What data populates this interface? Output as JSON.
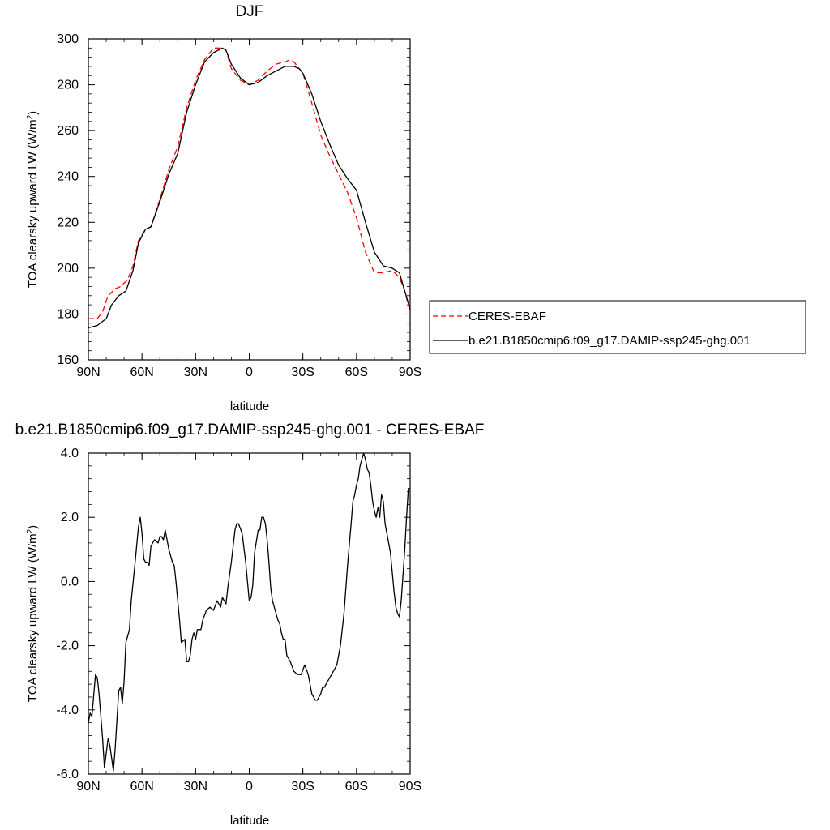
{
  "colors": {
    "model": "#000000",
    "obs": "#ff0000"
  },
  "chart_data": [
    {
      "type": "line",
      "title": "DJF",
      "xlabel": "latitude",
      "ylabel_main": "TOA clearsky upward LW (W/m",
      "ylabel_sup": "2",
      "ylabel_close": ")",
      "xlim": [
        -90,
        90
      ],
      "ylim": [
        160,
        300
      ],
      "x_ticks": [
        -90,
        -60,
        -30,
        0,
        30,
        60,
        90
      ],
      "x_tick_labels": [
        "90N",
        "60N",
        "30N",
        "0",
        "30S",
        "60S",
        "90S"
      ],
      "y_ticks": [
        160,
        180,
        200,
        220,
        240,
        260,
        280,
        300
      ],
      "y_tick_labels": [
        "160",
        "180",
        "200",
        "220",
        "240",
        "260",
        "280",
        "300"
      ],
      "legend_position": "right",
      "series": [
        {
          "name": "CERES-EBAF",
          "style": "dashed",
          "color": "#ff0000",
          "x": [
            -90,
            -85,
            -82,
            -79,
            -75,
            -72,
            -68,
            -65,
            -62,
            -58,
            -55,
            -50,
            -45,
            -40,
            -35,
            -30,
            -25,
            -20,
            -15,
            -13,
            -10,
            -5,
            0,
            5,
            10,
            15,
            20,
            23,
            25,
            30,
            35,
            40,
            45,
            50,
            55,
            60,
            65,
            70,
            75,
            80,
            84,
            87,
            90
          ],
          "y": [
            178,
            178,
            181,
            188,
            191,
            192,
            195,
            201,
            212,
            217,
            218,
            230,
            243,
            253,
            270,
            282,
            291,
            296,
            296,
            295,
            287,
            282,
            280,
            282,
            286,
            289,
            290,
            291,
            290,
            285,
            272,
            258,
            249,
            241,
            233,
            222,
            207,
            198,
            198,
            199,
            196,
            190,
            181
          ]
        },
        {
          "name": "b.e21.B1850cmip6.f09_g17.DAMIP-ssp245-ghg.001",
          "style": "solid",
          "color": "#000000",
          "x": [
            -90,
            -85,
            -80,
            -77,
            -73,
            -69,
            -65,
            -62,
            -58,
            -55,
            -50,
            -45,
            -40,
            -35,
            -30,
            -25,
            -20,
            -15,
            -13,
            -10,
            -5,
            0,
            5,
            10,
            15,
            20,
            25,
            28,
            30,
            35,
            40,
            45,
            50,
            55,
            60,
            65,
            70,
            75,
            80,
            84,
            87,
            90
          ],
          "y": [
            174,
            175,
            178,
            184,
            188,
            190,
            199,
            211,
            217,
            218,
            229,
            241,
            250,
            268,
            280,
            290,
            294,
            296,
            295,
            289,
            283,
            280,
            281,
            284,
            286,
            288,
            288,
            287,
            285,
            276,
            264,
            254,
            245,
            239,
            234,
            220,
            207,
            201,
            200,
            198,
            190,
            182
          ]
        }
      ]
    },
    {
      "type": "line",
      "title": "b.e21.B1850cmip6.f09_g17.DAMIP-ssp245-ghg.001 - CERES-EBAF",
      "xlabel": "latitude",
      "ylabel_main": "TOA clearsky upward LW (W/m",
      "ylabel_sup": "2",
      "ylabel_close": ")",
      "xlim": [
        -90,
        90
      ],
      "ylim": [
        -6.0,
        4.0
      ],
      "x_ticks": [
        -90,
        -60,
        -30,
        0,
        30,
        60,
        90
      ],
      "x_tick_labels": [
        "90N",
        "60N",
        "30N",
        "0",
        "30S",
        "60S",
        "90S"
      ],
      "y_ticks": [
        -6.0,
        -4.0,
        -2.0,
        0.0,
        2.0,
        4.0
      ],
      "y_tick_labels": [
        "-6.0",
        "-4.0",
        "-2.0",
        "0.0",
        "2.0",
        "4.0"
      ],
      "series": [
        {
          "style": "solid",
          "color": "#000000",
          "x": [
            -90,
            -89,
            -88,
            -86,
            -85,
            -84,
            -82,
            -81,
            -79,
            -78,
            -76,
            -75,
            -73,
            -72,
            -71,
            -70,
            -69,
            -67,
            -66,
            -64,
            -62,
            -61,
            -60,
            -59,
            -58,
            -57,
            -56,
            -55,
            -53,
            -51,
            -50,
            -49,
            -48,
            -47,
            -45,
            -43,
            -42,
            -41,
            -40,
            -39,
            -38,
            -36,
            -35,
            -34,
            -33,
            -32,
            -31,
            -30,
            -29,
            -28,
            -27,
            -26,
            -24,
            -22,
            -20,
            -18,
            -16,
            -15,
            -13,
            -12,
            -10,
            -8,
            -7,
            -6,
            -4,
            -2,
            0,
            1,
            2,
            3,
            5,
            6,
            7,
            8,
            9,
            10,
            11,
            12,
            13,
            15,
            16,
            17,
            18,
            19,
            20,
            21,
            23,
            25,
            27,
            29,
            31,
            33,
            35,
            37,
            38,
            39,
            40,
            41,
            42,
            43,
            44,
            45,
            47,
            49,
            51,
            53,
            55,
            57,
            58,
            59,
            60,
            61,
            62,
            63,
            64,
            65,
            66,
            67,
            68,
            69,
            70,
            71,
            72,
            73,
            74,
            75,
            76,
            77,
            78,
            79,
            80,
            81,
            82,
            83,
            84,
            85,
            86,
            87,
            88,
            89,
            90
          ],
          "y": [
            -4.4,
            -4.1,
            -4.2,
            -2.9,
            -3.0,
            -3.5,
            -4.9,
            -5.8,
            -4.9,
            -5.1,
            -5.9,
            -5.2,
            -3.4,
            -3.3,
            -3.8,
            -3.1,
            -1.9,
            -1.5,
            -0.6,
            0.5,
            1.7,
            2.0,
            1.5,
            0.7,
            0.6,
            0.6,
            0.5,
            1.1,
            1.3,
            1.2,
            1.4,
            1.4,
            1.3,
            1.6,
            1.0,
            0.6,
            0.5,
            0.0,
            -0.6,
            -1.2,
            -1.9,
            -1.8,
            -2.5,
            -2.5,
            -2.3,
            -1.8,
            -1.6,
            -1.8,
            -1.5,
            -1.5,
            -1.5,
            -1.2,
            -0.9,
            -0.8,
            -0.9,
            -0.6,
            -0.8,
            -0.5,
            -0.7,
            -0.2,
            0.6,
            1.6,
            1.8,
            1.8,
            1.5,
            0.6,
            -0.6,
            -0.5,
            -0.1,
            0.9,
            1.6,
            1.6,
            2.0,
            2.0,
            1.8,
            1.3,
            0.6,
            -0.2,
            -0.6,
            -1.0,
            -1.2,
            -1.3,
            -1.6,
            -1.8,
            -1.8,
            -2.3,
            -2.5,
            -2.8,
            -2.9,
            -2.9,
            -2.6,
            -2.9,
            -3.5,
            -3.7,
            -3.7,
            -3.6,
            -3.5,
            -3.3,
            -3.3,
            -3.2,
            -3.1,
            -3.0,
            -2.8,
            -2.6,
            -2.0,
            -1.0,
            0.5,
            1.8,
            2.5,
            2.7,
            3.0,
            3.2,
            3.6,
            3.8,
            4.0,
            3.8,
            3.5,
            3.4,
            3.0,
            2.5,
            2.2,
            2.0,
            2.3,
            2.0,
            2.7,
            2.5,
            1.8,
            1.5,
            1.2,
            0.9,
            0.3,
            -0.3,
            -0.8,
            -1.0,
            -1.1,
            -0.6,
            0.2,
            1.0,
            2.0,
            2.9,
            2.9
          ]
        }
      ]
    }
  ]
}
